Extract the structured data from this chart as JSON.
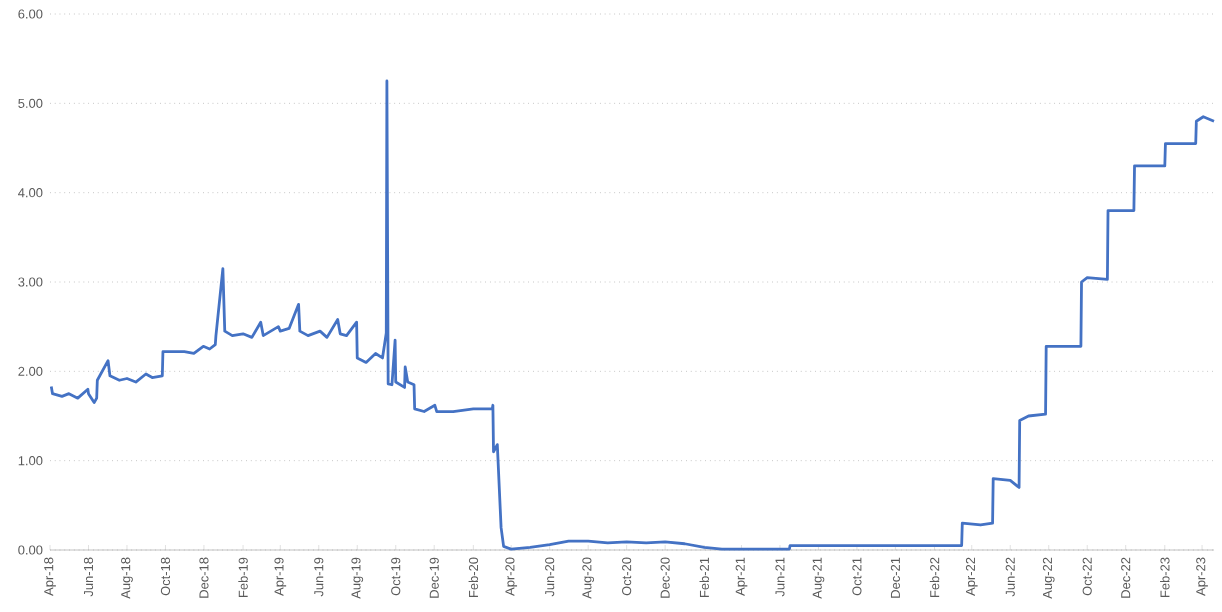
{
  "chart_data": {
    "type": "line",
    "color": "#4472c4",
    "grid": "y",
    "marker": "none",
    "line_style": "solid",
    "x": [
      "2018-04-03",
      "2018-04-05",
      "2018-04-20",
      "2018-05-01",
      "2018-05-15",
      "2018-05-31",
      "2018-06-01",
      "2018-06-10",
      "2018-06-14",
      "2018-06-15",
      "2018-07-02",
      "2018-07-05",
      "2018-07-20",
      "2018-08-01",
      "2018-08-15",
      "2018-08-31",
      "2018-09-10",
      "2018-09-26",
      "2018-09-27",
      "2018-10-31",
      "2018-11-15",
      "2018-11-30",
      "2018-12-10",
      "2018-12-19",
      "2018-12-20",
      "2018-12-31",
      "2019-01-03",
      "2019-01-15",
      "2019-02-01",
      "2019-02-15",
      "2019-03-01",
      "2019-03-05",
      "2019-03-29",
      "2019-04-01",
      "2019-04-15",
      "2019-04-30",
      "2019-05-02",
      "2019-05-15",
      "2019-06-03",
      "2019-06-14",
      "2019-07-01",
      "2019-07-05",
      "2019-07-15",
      "2019-07-31",
      "2019-08-01",
      "2019-08-15",
      "2019-08-30",
      "2019-09-10",
      "2019-09-16",
      "2019-09-17",
      "2019-09-19",
      "2019-09-25",
      "2019-09-30",
      "2019-10-01",
      "2019-10-15",
      "2019-10-16",
      "2019-10-20",
      "2019-10-30",
      "2019-10-31",
      "2019-11-15",
      "2019-12-02",
      "2019-12-05",
      "2019-12-31",
      "2020-02-01",
      "2020-03-02",
      "2020-03-03",
      "2020-03-04",
      "2020-03-10",
      "2020-03-16",
      "2020-03-20",
      "2020-04-01",
      "2020-05-01",
      "2020-06-01",
      "2020-07-01",
      "2020-08-01",
      "2020-09-01",
      "2020-10-01",
      "2020-11-01",
      "2020-12-01",
      "2021-01-01",
      "2021-02-01",
      "2021-03-01",
      "2021-06-16",
      "2021-06-17",
      "2022-03-16",
      "2022-03-17",
      "2022-04-15",
      "2022-05-04",
      "2022-05-05",
      "2022-06-01",
      "2022-06-15",
      "2022-06-16",
      "2022-06-30",
      "2022-07-27",
      "2022-07-28",
      "2022-09-21",
      "2022-09-22",
      "2022-10-01",
      "2022-11-02",
      "2022-11-03",
      "2022-12-14",
      "2022-12-15",
      "2023-02-01",
      "2023-02-02",
      "2023-03-22",
      "2023-03-23",
      "2023-04-03",
      "2023-04-20"
    ],
    "values": [
      1.83,
      1.75,
      1.72,
      1.75,
      1.7,
      1.8,
      1.75,
      1.65,
      1.7,
      1.9,
      2.12,
      1.95,
      1.9,
      1.92,
      1.88,
      1.97,
      1.93,
      1.95,
      2.22,
      2.22,
      2.2,
      2.28,
      2.25,
      2.3,
      2.4,
      3.15,
      2.45,
      2.4,
      2.42,
      2.38,
      2.55,
      2.4,
      2.5,
      2.45,
      2.48,
      2.75,
      2.45,
      2.4,
      2.45,
      2.38,
      2.58,
      2.42,
      2.4,
      2.55,
      2.15,
      2.1,
      2.2,
      2.15,
      2.43,
      5.25,
      1.86,
      1.85,
      2.35,
      1.88,
      1.82,
      2.05,
      1.88,
      1.85,
      1.58,
      1.55,
      1.62,
      1.55,
      1.55,
      1.58,
      1.58,
      1.62,
      1.1,
      1.18,
      0.25,
      0.04,
      0.01,
      0.03,
      0.06,
      0.1,
      0.1,
      0.08,
      0.09,
      0.08,
      0.09,
      0.07,
      0.03,
      0.01,
      0.01,
      0.05,
      0.05,
      0.3,
      0.28,
      0.3,
      0.8,
      0.78,
      0.7,
      1.45,
      1.5,
      1.52,
      2.28,
      2.28,
      3.0,
      3.05,
      3.03,
      3.8,
      3.8,
      4.3,
      4.3,
      4.55,
      4.55,
      4.8,
      4.85,
      4.8
    ],
    "xlim": [
      "2018-04-01",
      "2023-04-20"
    ],
    "xticks": [
      {
        "value": "2018-04-01",
        "label": "Apr-18"
      },
      {
        "value": "2018-06-01",
        "label": "Jun-18"
      },
      {
        "value": "2018-08-01",
        "label": "Aug-18"
      },
      {
        "value": "2018-10-01",
        "label": "Oct-18"
      },
      {
        "value": "2018-12-01",
        "label": "Dec-18"
      },
      {
        "value": "2019-02-01",
        "label": "Feb-19"
      },
      {
        "value": "2019-04-01",
        "label": "Apr-19"
      },
      {
        "value": "2019-06-01",
        "label": "Jun-19"
      },
      {
        "value": "2019-08-01",
        "label": "Aug-19"
      },
      {
        "value": "2019-10-01",
        "label": "Oct-19"
      },
      {
        "value": "2019-12-01",
        "label": "Dec-19"
      },
      {
        "value": "2020-02-01",
        "label": "Feb-20"
      },
      {
        "value": "2020-04-01",
        "label": "Apr-20"
      },
      {
        "value": "2020-06-01",
        "label": "Jun-20"
      },
      {
        "value": "2020-08-01",
        "label": "Aug-20"
      },
      {
        "value": "2020-10-01",
        "label": "Oct-20"
      },
      {
        "value": "2020-12-01",
        "label": "Dec-20"
      },
      {
        "value": "2021-02-01",
        "label": "Feb-21"
      },
      {
        "value": "2021-04-01",
        "label": "Apr-21"
      },
      {
        "value": "2021-06-01",
        "label": "Jun-21"
      },
      {
        "value": "2021-08-01",
        "label": "Aug-21"
      },
      {
        "value": "2021-10-01",
        "label": "Oct-21"
      },
      {
        "value": "2021-12-01",
        "label": "Dec-21"
      },
      {
        "value": "2022-02-01",
        "label": "Feb-22"
      },
      {
        "value": "2022-04-01",
        "label": "Apr-22"
      },
      {
        "value": "2022-06-01",
        "label": "Jun-22"
      },
      {
        "value": "2022-08-01",
        "label": "Aug-22"
      },
      {
        "value": "2022-10-01",
        "label": "Oct-22"
      },
      {
        "value": "2022-12-01",
        "label": "Dec-22"
      },
      {
        "value": "2023-02-01",
        "label": "Feb-23"
      },
      {
        "value": "2023-04-01",
        "label": "Apr-23"
      }
    ],
    "ylim": [
      0,
      6
    ],
    "yticks": [
      {
        "value": 0,
        "label": "0.00"
      },
      {
        "value": 1,
        "label": "1.00"
      },
      {
        "value": 2,
        "label": "2.00"
      },
      {
        "value": 3,
        "label": "3.00"
      },
      {
        "value": 4,
        "label": "4.00"
      },
      {
        "value": 5,
        "label": "5.00"
      },
      {
        "value": 6,
        "label": "6.00"
      }
    ]
  }
}
